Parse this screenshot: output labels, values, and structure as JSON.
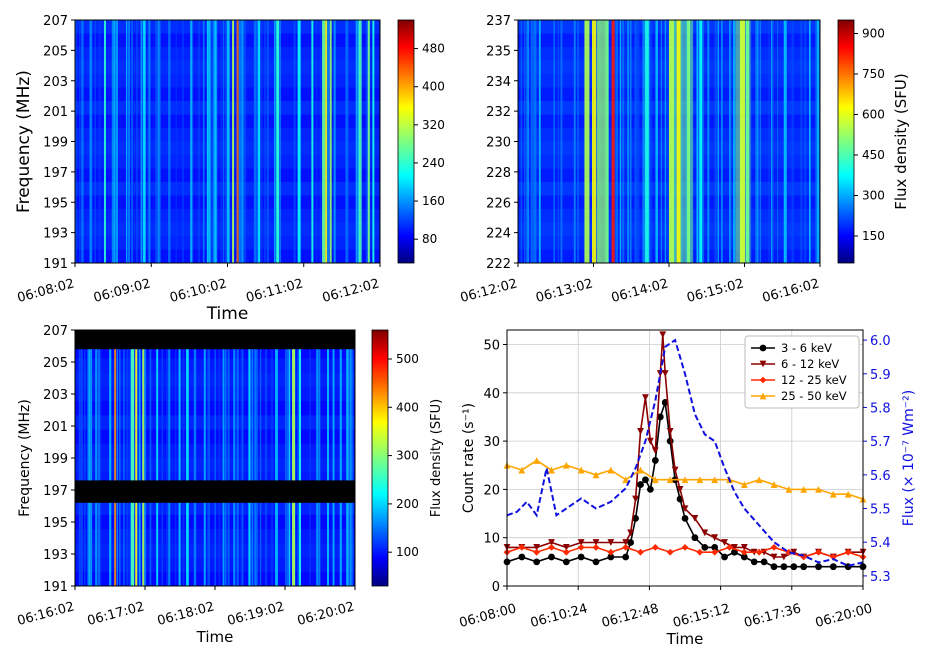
{
  "chart_data": [
    {
      "type": "heatmap",
      "panel": "top-left",
      "title": "",
      "xlabel": "Time",
      "ylabel": "Frequency (MHz)",
      "xticks": [
        "06:08:02",
        "06:09:02",
        "06:10:02",
        "06:11:02",
        "06:12:02"
      ],
      "yticks": [
        "191",
        "193",
        "195",
        "197",
        "199",
        "201",
        "203",
        "205",
        "207"
      ],
      "ylim": [
        191,
        207
      ],
      "colorbar": {
        "label": "",
        "ticks": [
          "80",
          "160",
          "240",
          "320",
          "400",
          "480"
        ],
        "range": [
          30,
          540
        ]
      },
      "colormap": "jet"
    },
    {
      "type": "heatmap",
      "panel": "top-right",
      "title": "",
      "xlabel": "",
      "ylabel": "",
      "xticks": [
        "06:12:02",
        "06:13:02",
        "06:14:02",
        "06:15:02",
        "06:16:02"
      ],
      "yticks": [
        "222",
        "224",
        "226",
        "228",
        "230",
        "232",
        "234",
        "235",
        "237"
      ],
      "ylim": [
        222,
        237
      ],
      "colorbar": {
        "label": "Flux density (SFU)",
        "ticks": [
          "150",
          "300",
          "450",
          "600",
          "750",
          "900"
        ],
        "range": [
          50,
          950
        ]
      },
      "colormap": "jet"
    },
    {
      "type": "heatmap",
      "panel": "bottom-left",
      "title": "",
      "xlabel": "Time",
      "ylabel": "Frequency (MHz)",
      "xticks": [
        "06:16:02",
        "06:17:02",
        "06:18:02",
        "06:19:02",
        "06:20:02"
      ],
      "yticks": [
        "191",
        "193",
        "195",
        "197",
        "199",
        "201",
        "203",
        "205",
        "207"
      ],
      "ylim": [
        191,
        207
      ],
      "colorbar": {
        "label": "Flux density (SFU)",
        "ticks": [
          "100",
          "200",
          "300",
          "400",
          "500"
        ],
        "range": [
          30,
          560
        ]
      },
      "colormap": "jet",
      "masked_bands_mhz": [
        [
          205.8,
          207
        ],
        [
          196.2,
          197.6
        ]
      ]
    },
    {
      "type": "line",
      "panel": "bottom-right",
      "title": "",
      "xlabel": "Time",
      "ylabel": "Count rate (s⁻¹)",
      "y2label": "Flux (× 10⁻⁷ Wm⁻²)",
      "xticks": [
        "06:08:00",
        "06:10:24",
        "06:12:48",
        "06:15:12",
        "06:17:36",
        "06:20:00"
      ],
      "xlim_min": [
        0,
        720
      ],
      "yticks": [
        "0",
        "10",
        "20",
        "30",
        "40",
        "50"
      ],
      "ylim": [
        0,
        53
      ],
      "y2ticks": [
        "5.3",
        "5.4",
        "5.5",
        "5.6",
        "5.7",
        "5.8",
        "5.9",
        "6.0"
      ],
      "y2lim": [
        5.27,
        6.03
      ],
      "grid": true,
      "legend": "top-right",
      "series": [
        {
          "name": "3 - 6 keV",
          "color": "#000000",
          "marker": "circle",
          "x": [
            0,
            30,
            60,
            90,
            120,
            150,
            180,
            210,
            240,
            250,
            260,
            270,
            280,
            290,
            300,
            310,
            320,
            330,
            340,
            350,
            360,
            380,
            400,
            420,
            440,
            460,
            480,
            500,
            520,
            540,
            560,
            580,
            600,
            630,
            660,
            690,
            720
          ],
          "values": [
            5,
            6,
            5,
            6,
            5,
            6,
            5,
            6,
            6,
            9,
            14,
            21,
            22,
            20,
            26,
            35,
            38,
            30,
            22,
            18,
            14,
            10,
            8,
            8,
            6,
            7,
            6,
            5,
            5,
            4,
            4,
            4,
            4,
            4,
            4,
            4,
            4
          ]
        },
        {
          "name": "6 - 12 keV",
          "color": "#8b0000",
          "marker": "triangle-down",
          "x": [
            0,
            30,
            60,
            90,
            120,
            150,
            180,
            210,
            240,
            250,
            260,
            270,
            280,
            290,
            300,
            310,
            315,
            320,
            330,
            340,
            350,
            360,
            380,
            400,
            420,
            440,
            460,
            480,
            500,
            520,
            540,
            560,
            580,
            600,
            630,
            660,
            690,
            720
          ],
          "values": [
            8,
            8,
            8,
            9,
            8,
            9,
            9,
            9,
            9,
            11,
            18,
            32,
            39,
            30,
            28,
            44,
            52,
            44,
            32,
            24,
            20,
            16,
            14,
            11,
            10,
            9,
            8,
            8,
            7,
            7,
            6,
            6,
            7,
            6,
            7,
            6,
            7,
            7
          ]
        },
        {
          "name": "12 - 25 keV",
          "color": "#ff2a00",
          "marker": "diamond",
          "x": [
            0,
            30,
            60,
            90,
            120,
            150,
            180,
            210,
            240,
            270,
            300,
            330,
            360,
            390,
            420,
            450,
            480,
            510,
            540,
            570,
            600,
            630,
            660,
            690,
            720
          ],
          "values": [
            7,
            8,
            7,
            8,
            7,
            8,
            8,
            7,
            8,
            7,
            8,
            7,
            8,
            7,
            7,
            8,
            7,
            7,
            8,
            7,
            6,
            7,
            6,
            7,
            6
          ]
        },
        {
          "name": "25 - 50 keV",
          "color": "#ffa500",
          "marker": "triangle-up",
          "x": [
            0,
            30,
            60,
            90,
            120,
            150,
            180,
            210,
            240,
            270,
            300,
            330,
            360,
            390,
            420,
            450,
            480,
            510,
            540,
            570,
            600,
            630,
            660,
            690,
            720
          ],
          "values": [
            25,
            24,
            26,
            24,
            25,
            24,
            23,
            24,
            22,
            24,
            22,
            22,
            22,
            22,
            22,
            22,
            21,
            22,
            21,
            20,
            20,
            20,
            19,
            19,
            18
          ]
        },
        {
          "name": "Flux",
          "axis": "right",
          "color": "#1010e0",
          "style": "dashed",
          "x": [
            0,
            20,
            40,
            60,
            80,
            100,
            120,
            150,
            180,
            210,
            240,
            260,
            280,
            300,
            320,
            340,
            360,
            380,
            400,
            420,
            440,
            460,
            480,
            510,
            540,
            570,
            600,
            630,
            660,
            690,
            720
          ],
          "values": [
            5.48,
            5.49,
            5.52,
            5.48,
            5.62,
            5.48,
            5.5,
            5.53,
            5.5,
            5.52,
            5.56,
            5.62,
            5.7,
            5.82,
            5.98,
            6.0,
            5.9,
            5.78,
            5.72,
            5.7,
            5.62,
            5.55,
            5.5,
            5.45,
            5.4,
            5.37,
            5.36,
            5.34,
            5.35,
            5.33,
            5.34
          ]
        }
      ]
    }
  ]
}
